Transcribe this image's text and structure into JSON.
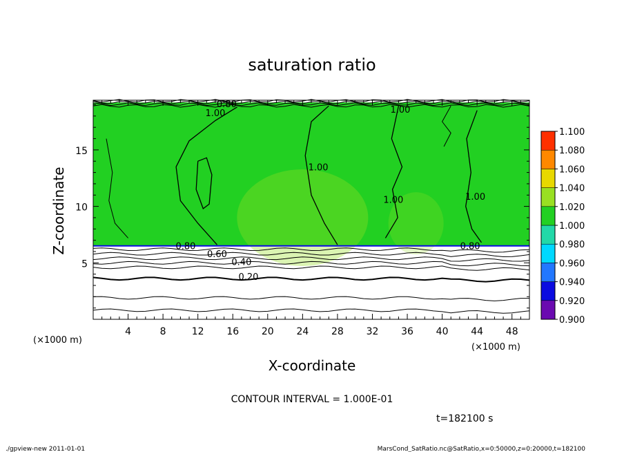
{
  "chart_data": {
    "type": "heatmap",
    "title": "saturation ratio",
    "xlabel": "X-coordinate",
    "ylabel": "Z-coordinate",
    "x_unit_label": "(×1000 m)",
    "y_unit_label": "(×1000 m)",
    "xlim": [
      0,
      50
    ],
    "ylim": [
      0,
      19.4
    ],
    "x_ticks": [
      4,
      8,
      12,
      16,
      20,
      24,
      28,
      32,
      36,
      40,
      44,
      48
    ],
    "x_tick_labels": [
      "4",
      "8",
      "12",
      "16",
      "20",
      "24",
      "28",
      "32",
      "36",
      "40",
      "44",
      "48"
    ],
    "y_ticks": [
      5,
      10,
      15
    ],
    "y_tick_labels": [
      "5",
      "10",
      "15"
    ],
    "colorbar": {
      "levels": [
        0.9,
        0.92,
        0.94,
        0.96,
        0.98,
        1.0,
        1.02,
        1.04,
        1.06,
        1.08,
        1.1
      ],
      "level_labels": [
        "0.900",
        "0.920",
        "0.940",
        "0.960",
        "0.980",
        "1.000",
        "1.020",
        "1.040",
        "1.060",
        "1.080",
        "1.100"
      ],
      "colors": [
        "#6a0ab0",
        "#0b0be0",
        "#2277ff",
        "#00d8ff",
        "#22d8a8",
        "#22d022",
        "#99e022",
        "#e8d800",
        "#ff8800",
        "#ff3000",
        "#ff9090"
      ]
    },
    "field_summary": {
      "saturated_layer_z": [
        6.5,
        19.2
      ],
      "saturated_value": 1.0,
      "lower_layer_z": [
        0,
        6.5
      ]
    },
    "contour_interval": 0.1,
    "contour_labels": [
      {
        "text": "1.00",
        "x": 14,
        "z": 18.0
      },
      {
        "text": "1.00",
        "x": 25.8,
        "z": 13.2
      },
      {
        "text": "1.00",
        "x": 43.8,
        "z": 10.6
      },
      {
        "text": "1.00",
        "x": 34.4,
        "z": 10.3
      },
      {
        "text": "1.00",
        "x": 35.2,
        "z": 18.3
      },
      {
        "text": "0.80",
        "x": 15.3,
        "z": 18.8
      },
      {
        "text": "0.80",
        "x": 10.6,
        "z": 6.2
      },
      {
        "text": "0.80",
        "x": 43.2,
        "z": 6.2
      },
      {
        "text": "0.60",
        "x": 14.2,
        "z": 5.5
      },
      {
        "text": "0.40",
        "x": 17.0,
        "z": 4.8
      },
      {
        "text": "0.20",
        "x": 17.8,
        "z": 3.5
      }
    ],
    "contour_lines_z": [
      0.8,
      1.9,
      3.6,
      4.6,
      5.0,
      5.4,
      5.8,
      6.2
    ],
    "interval_label": "CONTOUR INTERVAL = 1.000E-01",
    "time_label": "t=182100 s"
  },
  "footer": {
    "left": "./gpview-new   2011-01-01",
    "right": "MarsCond_SatRatio.nc@SatRatio,x=0:50000,z=0:20000,t=182100"
  }
}
